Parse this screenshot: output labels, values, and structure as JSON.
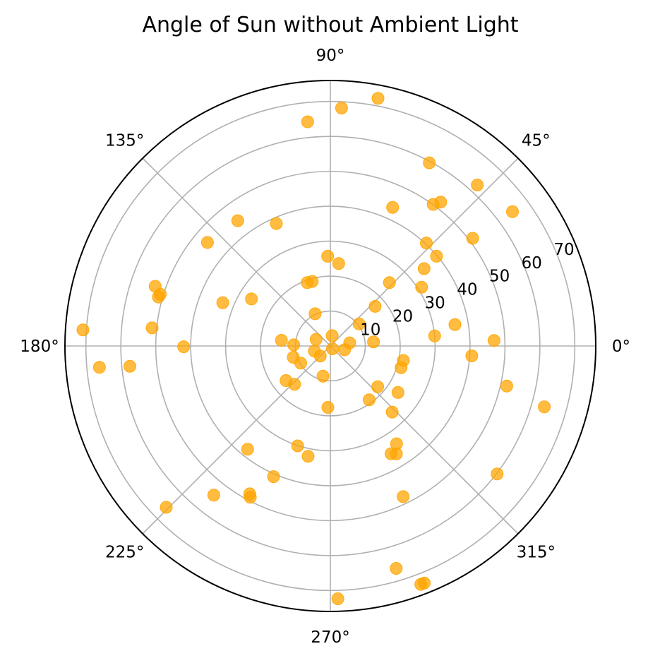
{
  "chart_data": {
    "type": "scatter",
    "projection": "polar",
    "title": "Angle of Sun without Ambient Light",
    "rlim": [
      0,
      76
    ],
    "r_ticks": [
      10,
      20,
      30,
      40,
      50,
      60,
      70
    ],
    "r_tick_labels": [
      "10",
      "20",
      "30",
      "40",
      "50",
      "60",
      "70"
    ],
    "theta_ticks": [
      0,
      45,
      90,
      135,
      180,
      225,
      270,
      315
    ],
    "theta_tick_labels": [
      "0°",
      "45°",
      "90°",
      "135°",
      "180°",
      "225°",
      "270°",
      "315°"
    ],
    "grid": true,
    "marker_color": "#ffa500",
    "marker_alpha": 0.75,
    "series": [
      {
        "points": [
          {
            "theta": 79.1,
            "r": 72.2
          },
          {
            "theta": 87.3,
            "r": 68.2
          },
          {
            "theta": 95.8,
            "r": 64.5
          },
          {
            "theta": 61.6,
            "r": 59.6
          },
          {
            "theta": 47.6,
            "r": 62.4
          },
          {
            "theta": 36.4,
            "r": 64.8
          },
          {
            "theta": 52.5,
            "r": 51.9
          },
          {
            "theta": 54.0,
            "r": 50.1
          },
          {
            "theta": 65.8,
            "r": 43.5
          },
          {
            "theta": 37.1,
            "r": 51.1
          },
          {
            "theta": 47.0,
            "r": 40.3
          },
          {
            "theta": 40.2,
            "r": 39.8
          },
          {
            "theta": 39.5,
            "r": 34.8
          },
          {
            "theta": 32.8,
            "r": 31.1
          },
          {
            "theta": 47.0,
            "r": 24.8
          },
          {
            "theta": 9.7,
            "r": 36.2
          },
          {
            "theta": 5.5,
            "r": 30.0
          },
          {
            "theta": 1.9,
            "r": 46.9
          },
          {
            "theta": -4.0,
            "r": 40.6
          },
          {
            "theta": -15.9,
            "r": 63.7
          },
          {
            "theta": 41.5,
            "r": 17.1
          },
          {
            "theta": 37.5,
            "r": 10.4
          },
          {
            "theta": 5.3,
            "r": 12.4
          },
          {
            "theta": 91.7,
            "r": 25.7
          },
          {
            "theta": 84.2,
            "r": 23.7
          },
          {
            "theta": 126.5,
            "r": 44.6
          },
          {
            "theta": 113.8,
            "r": 38.3
          },
          {
            "theta": 139.9,
            "r": 46.0
          },
          {
            "theta": 161.2,
            "r": 53.0
          },
          {
            "theta": 163.1,
            "r": 50.9
          },
          {
            "theta": 164.1,
            "r": 51.2
          },
          {
            "theta": 149.2,
            "r": 26.3
          },
          {
            "theta": 158.1,
            "r": 33.2
          },
          {
            "theta": 174.2,
            "r": 51.3
          },
          {
            "theta": 176.3,
            "r": 71.0
          },
          {
            "theta": 185.3,
            "r": 66.4
          },
          {
            "theta": 185.8,
            "r": 57.7
          },
          {
            "theta": 180.3,
            "r": 42.0
          },
          {
            "theta": 105.7,
            "r": 19.2
          },
          {
            "theta": 115.4,
            "r": 10.2
          },
          {
            "theta": 155.1,
            "r": 4.5
          },
          {
            "theta": 110.1,
            "r": 19.3
          },
          {
            "theta": -17.1,
            "r": 21.2
          },
          {
            "theta": -34.5,
            "r": 23.5
          },
          {
            "theta": -40.7,
            "r": 17.9
          },
          {
            "theta": 9.1,
            "r": 5.6
          },
          {
            "theta": -11.2,
            "r": 21.3
          },
          {
            "theta": -12.8,
            "r": 51.8
          },
          {
            "theta": -37.5,
            "r": 60.2
          },
          {
            "theta": -46.9,
            "r": 25.9
          },
          {
            "theta": -55.9,
            "r": 33.8
          },
          {
            "theta": -64.2,
            "r": 47.9
          },
          {
            "theta": -54.2,
            "r": 19.0
          },
          {
            "theta": -60.6,
            "r": 35.4
          },
          {
            "theta": -58.5,
            "r": 36.2
          },
          {
            "theta": -73.5,
            "r": 66.4
          },
          {
            "theta": -69.2,
            "r": 73.0
          },
          {
            "theta": -68.4,
            "r": 73.0
          },
          {
            "theta": -88.3,
            "r": 72.4
          },
          {
            "theta": -92.3,
            "r": 17.6
          },
          {
            "theta": -101.4,
            "r": 32.2
          },
          {
            "theta": -108.1,
            "r": 30.1
          },
          {
            "theta": -113.5,
            "r": 40.8
          },
          {
            "theta": -117.9,
            "r": 49.0
          },
          {
            "theta": -118.6,
            "r": 48.2
          },
          {
            "theta": -128.0,
            "r": 54.2
          },
          {
            "theta": -135.5,
            "r": 65.9
          },
          {
            "theta": -128.7,
            "r": 37.9
          },
          {
            "theta": -103.7,
            "r": 8.9
          },
          {
            "theta": -133.1,
            "r": 15.0
          },
          {
            "theta": -142.0,
            "r": 16.1
          },
          {
            "theta": -150.0,
            "r": 9.8
          },
          {
            "theta": -163.1,
            "r": 11.1
          },
          {
            "theta": 173.4,
            "r": 14.1
          },
          {
            "theta": 178.2,
            "r": 10.5
          },
          {
            "theta": -162.2,
            "r": 4.8
          },
          {
            "theta": -135.0,
            "r": 4.1
          },
          {
            "theta": 80.0,
            "r": 3.0
          },
          {
            "theta": -15.0,
            "r": 4.2
          },
          {
            "theta": -53.1,
            "r": 1.0
          }
        ]
      }
    ]
  }
}
